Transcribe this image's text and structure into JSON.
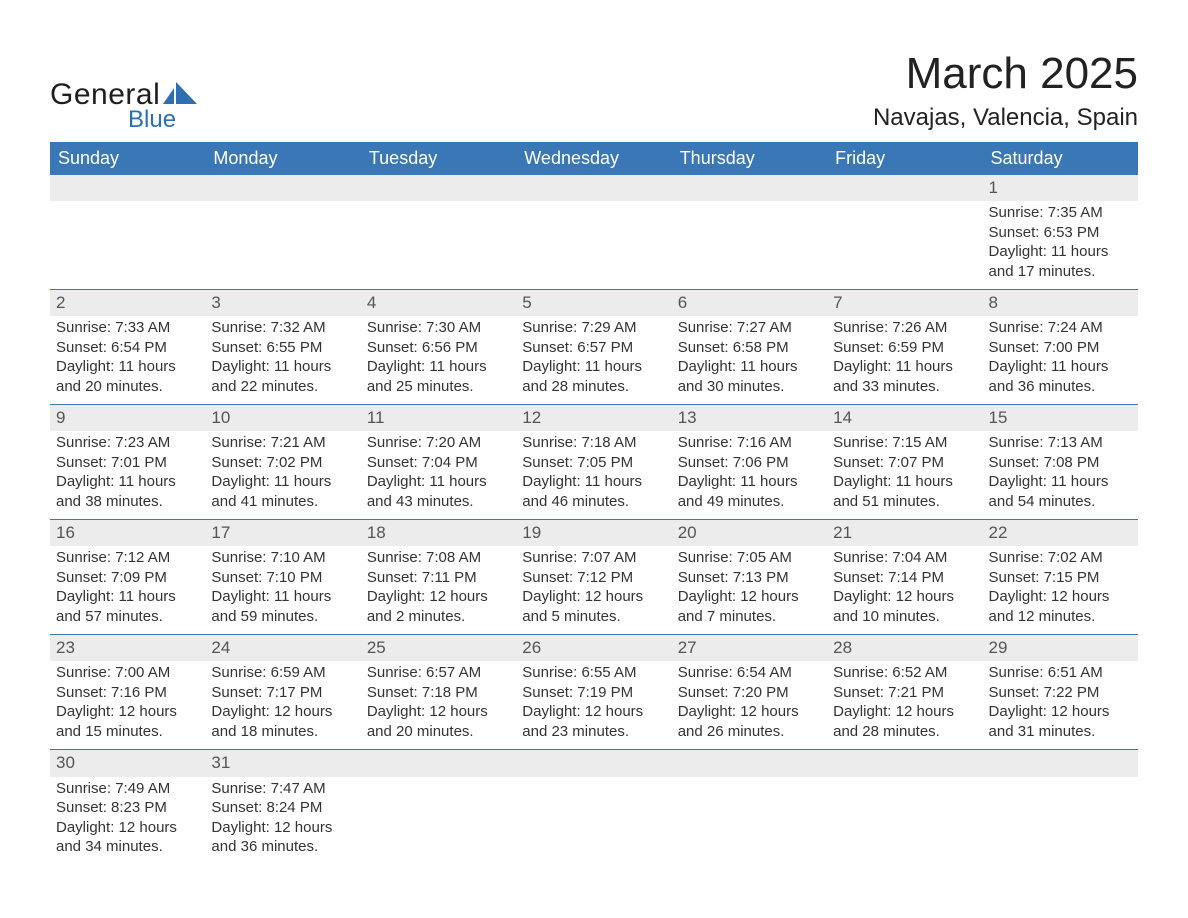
{
  "brand": {
    "word1": "General",
    "word2": "Blue"
  },
  "title": "March 2025",
  "location": "Navajas, Valencia, Spain",
  "colors": {
    "header_bg": "#3a77b6",
    "header_text": "#ffffff",
    "daynum_bg": "#ececec",
    "border": "#3a77b6",
    "brand_blue": "#2d6fb2"
  },
  "weekdays": [
    "Sunday",
    "Monday",
    "Tuesday",
    "Wednesday",
    "Thursday",
    "Friday",
    "Saturday"
  ],
  "weeks": [
    [
      {
        "day": null
      },
      {
        "day": null
      },
      {
        "day": null
      },
      {
        "day": null
      },
      {
        "day": null
      },
      {
        "day": null
      },
      {
        "day": "1",
        "sunrise": "Sunrise: 7:35 AM",
        "sunset": "Sunset: 6:53 PM",
        "daylight1": "Daylight: 11 hours",
        "daylight2": "and 17 minutes."
      }
    ],
    [
      {
        "day": "2",
        "sunrise": "Sunrise: 7:33 AM",
        "sunset": "Sunset: 6:54 PM",
        "daylight1": "Daylight: 11 hours",
        "daylight2": "and 20 minutes."
      },
      {
        "day": "3",
        "sunrise": "Sunrise: 7:32 AM",
        "sunset": "Sunset: 6:55 PM",
        "daylight1": "Daylight: 11 hours",
        "daylight2": "and 22 minutes."
      },
      {
        "day": "4",
        "sunrise": "Sunrise: 7:30 AM",
        "sunset": "Sunset: 6:56 PM",
        "daylight1": "Daylight: 11 hours",
        "daylight2": "and 25 minutes."
      },
      {
        "day": "5",
        "sunrise": "Sunrise: 7:29 AM",
        "sunset": "Sunset: 6:57 PM",
        "daylight1": "Daylight: 11 hours",
        "daylight2": "and 28 minutes."
      },
      {
        "day": "6",
        "sunrise": "Sunrise: 7:27 AM",
        "sunset": "Sunset: 6:58 PM",
        "daylight1": "Daylight: 11 hours",
        "daylight2": "and 30 minutes."
      },
      {
        "day": "7",
        "sunrise": "Sunrise: 7:26 AM",
        "sunset": "Sunset: 6:59 PM",
        "daylight1": "Daylight: 11 hours",
        "daylight2": "and 33 minutes."
      },
      {
        "day": "8",
        "sunrise": "Sunrise: 7:24 AM",
        "sunset": "Sunset: 7:00 PM",
        "daylight1": "Daylight: 11 hours",
        "daylight2": "and 36 minutes."
      }
    ],
    [
      {
        "day": "9",
        "sunrise": "Sunrise: 7:23 AM",
        "sunset": "Sunset: 7:01 PM",
        "daylight1": "Daylight: 11 hours",
        "daylight2": "and 38 minutes."
      },
      {
        "day": "10",
        "sunrise": "Sunrise: 7:21 AM",
        "sunset": "Sunset: 7:02 PM",
        "daylight1": "Daylight: 11 hours",
        "daylight2": "and 41 minutes."
      },
      {
        "day": "11",
        "sunrise": "Sunrise: 7:20 AM",
        "sunset": "Sunset: 7:04 PM",
        "daylight1": "Daylight: 11 hours",
        "daylight2": "and 43 minutes."
      },
      {
        "day": "12",
        "sunrise": "Sunrise: 7:18 AM",
        "sunset": "Sunset: 7:05 PM",
        "daylight1": "Daylight: 11 hours",
        "daylight2": "and 46 minutes."
      },
      {
        "day": "13",
        "sunrise": "Sunrise: 7:16 AM",
        "sunset": "Sunset: 7:06 PM",
        "daylight1": "Daylight: 11 hours",
        "daylight2": "and 49 minutes."
      },
      {
        "day": "14",
        "sunrise": "Sunrise: 7:15 AM",
        "sunset": "Sunset: 7:07 PM",
        "daylight1": "Daylight: 11 hours",
        "daylight2": "and 51 minutes."
      },
      {
        "day": "15",
        "sunrise": "Sunrise: 7:13 AM",
        "sunset": "Sunset: 7:08 PM",
        "daylight1": "Daylight: 11 hours",
        "daylight2": "and 54 minutes."
      }
    ],
    [
      {
        "day": "16",
        "sunrise": "Sunrise: 7:12 AM",
        "sunset": "Sunset: 7:09 PM",
        "daylight1": "Daylight: 11 hours",
        "daylight2": "and 57 minutes."
      },
      {
        "day": "17",
        "sunrise": "Sunrise: 7:10 AM",
        "sunset": "Sunset: 7:10 PM",
        "daylight1": "Daylight: 11 hours",
        "daylight2": "and 59 minutes."
      },
      {
        "day": "18",
        "sunrise": "Sunrise: 7:08 AM",
        "sunset": "Sunset: 7:11 PM",
        "daylight1": "Daylight: 12 hours",
        "daylight2": "and 2 minutes."
      },
      {
        "day": "19",
        "sunrise": "Sunrise: 7:07 AM",
        "sunset": "Sunset: 7:12 PM",
        "daylight1": "Daylight: 12 hours",
        "daylight2": "and 5 minutes."
      },
      {
        "day": "20",
        "sunrise": "Sunrise: 7:05 AM",
        "sunset": "Sunset: 7:13 PM",
        "daylight1": "Daylight: 12 hours",
        "daylight2": "and 7 minutes."
      },
      {
        "day": "21",
        "sunrise": "Sunrise: 7:04 AM",
        "sunset": "Sunset: 7:14 PM",
        "daylight1": "Daylight: 12 hours",
        "daylight2": "and 10 minutes."
      },
      {
        "day": "22",
        "sunrise": "Sunrise: 7:02 AM",
        "sunset": "Sunset: 7:15 PM",
        "daylight1": "Daylight: 12 hours",
        "daylight2": "and 12 minutes."
      }
    ],
    [
      {
        "day": "23",
        "sunrise": "Sunrise: 7:00 AM",
        "sunset": "Sunset: 7:16 PM",
        "daylight1": "Daylight: 12 hours",
        "daylight2": "and 15 minutes."
      },
      {
        "day": "24",
        "sunrise": "Sunrise: 6:59 AM",
        "sunset": "Sunset: 7:17 PM",
        "daylight1": "Daylight: 12 hours",
        "daylight2": "and 18 minutes."
      },
      {
        "day": "25",
        "sunrise": "Sunrise: 6:57 AM",
        "sunset": "Sunset: 7:18 PM",
        "daylight1": "Daylight: 12 hours",
        "daylight2": "and 20 minutes."
      },
      {
        "day": "26",
        "sunrise": "Sunrise: 6:55 AM",
        "sunset": "Sunset: 7:19 PM",
        "daylight1": "Daylight: 12 hours",
        "daylight2": "and 23 minutes."
      },
      {
        "day": "27",
        "sunrise": "Sunrise: 6:54 AM",
        "sunset": "Sunset: 7:20 PM",
        "daylight1": "Daylight: 12 hours",
        "daylight2": "and 26 minutes."
      },
      {
        "day": "28",
        "sunrise": "Sunrise: 6:52 AM",
        "sunset": "Sunset: 7:21 PM",
        "daylight1": "Daylight: 12 hours",
        "daylight2": "and 28 minutes."
      },
      {
        "day": "29",
        "sunrise": "Sunrise: 6:51 AM",
        "sunset": "Sunset: 7:22 PM",
        "daylight1": "Daylight: 12 hours",
        "daylight2": "and 31 minutes."
      }
    ],
    [
      {
        "day": "30",
        "sunrise": "Sunrise: 7:49 AM",
        "sunset": "Sunset: 8:23 PM",
        "daylight1": "Daylight: 12 hours",
        "daylight2": "and 34 minutes."
      },
      {
        "day": "31",
        "sunrise": "Sunrise: 7:47 AM",
        "sunset": "Sunset: 8:24 PM",
        "daylight1": "Daylight: 12 hours",
        "daylight2": "and 36 minutes."
      },
      {
        "day": null
      },
      {
        "day": null
      },
      {
        "day": null
      },
      {
        "day": null
      },
      {
        "day": null
      }
    ]
  ]
}
